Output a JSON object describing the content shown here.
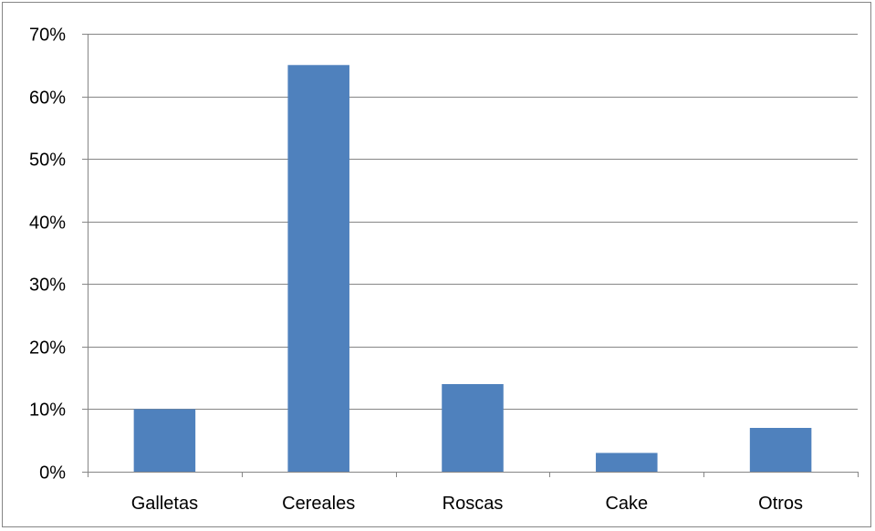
{
  "chart_data": {
    "type": "bar",
    "categories": [
      "Galletas",
      "Cereales",
      "Roscas",
      "Cake",
      "Otros"
    ],
    "values": [
      0.1,
      0.65,
      0.14,
      0.03,
      0.07
    ],
    "y_tick_values": [
      0,
      0.1,
      0.2,
      0.3,
      0.4,
      0.5,
      0.6,
      0.7
    ],
    "y_tick_labels": [
      "0%",
      "10%",
      "20%",
      "30%",
      "40%",
      "50%",
      "60%",
      "70%"
    ],
    "ylim": [
      0,
      0.7
    ],
    "grid": true,
    "legend": "none",
    "bar_color": "#4f81bd",
    "gridline_color": "#868686"
  }
}
